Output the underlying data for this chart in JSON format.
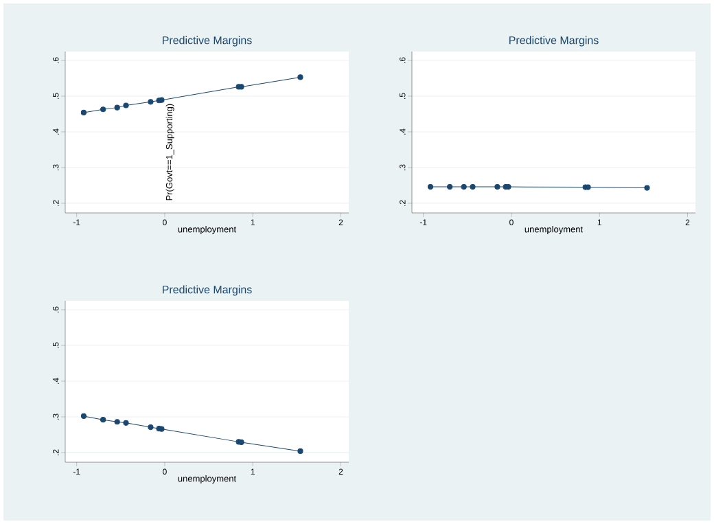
{
  "chart_data": [
    {
      "type": "line",
      "title": "Predictive Margins",
      "xlabel": "unemployment",
      "ylabel": "Pr(Govt==1_Supporting)",
      "color": "#1a476f",
      "marker": "circle",
      "grid": "y",
      "x": [
        -0.92,
        -0.7,
        -0.54,
        -0.44,
        -0.16,
        -0.065,
        -0.035,
        0.84,
        0.87,
        1.54
      ],
      "values": [
        0.454,
        0.463,
        0.468,
        0.474,
        0.484,
        0.488,
        0.489,
        0.526,
        0.526,
        0.553
      ],
      "xlim": [
        -1.13,
        2.09
      ],
      "ylim": [
        0.173,
        0.625
      ],
      "xticks": [
        -1,
        0,
        1,
        2
      ],
      "yticks": [
        {
          "value": 0.2,
          "label": ".2"
        },
        {
          "value": 0.3,
          "label": ".3"
        },
        {
          "value": 0.4,
          "label": ".4"
        },
        {
          "value": 0.5,
          "label": ".5"
        },
        {
          "value": 0.6,
          "label": ".6"
        }
      ]
    },
    {
      "type": "line",
      "title": "Predictive Margins",
      "xlabel": "unemployment",
      "color": "#1a476f",
      "marker": "circle",
      "grid": "y",
      "x": [
        -0.92,
        -0.7,
        -0.54,
        -0.44,
        -0.16,
        -0.065,
        -0.035,
        0.84,
        0.87,
        1.54
      ],
      "values": [
        0.246,
        0.246,
        0.246,
        0.246,
        0.246,
        0.246,
        0.246,
        0.245,
        0.245,
        0.243
      ],
      "xlim": [
        -1.13,
        2.09
      ],
      "ylim": [
        0.173,
        0.625
      ],
      "xticks": [
        -1,
        0,
        1,
        2
      ],
      "yticks": [
        {
          "value": 0.2,
          "label": ".2"
        },
        {
          "value": 0.3,
          "label": ".3"
        },
        {
          "value": 0.4,
          "label": ".4"
        },
        {
          "value": 0.5,
          "label": ".5"
        },
        {
          "value": 0.6,
          "label": ".6"
        }
      ]
    },
    {
      "type": "line",
      "title": "Predictive Margins",
      "xlabel": "unemployment",
      "color": "#1a476f",
      "marker": "circle",
      "grid": "y",
      "x": [
        -0.92,
        -0.7,
        -0.54,
        -0.44,
        -0.16,
        -0.065,
        -0.035,
        0.84,
        0.87,
        1.54
      ],
      "values": [
        0.302,
        0.292,
        0.286,
        0.283,
        0.271,
        0.267,
        0.266,
        0.23,
        0.229,
        0.204
      ],
      "xlim": [
        -1.13,
        2.09
      ],
      "ylim": [
        0.173,
        0.625
      ],
      "xticks": [
        -1,
        0,
        1,
        2
      ],
      "yticks": [
        {
          "value": 0.2,
          "label": ".2"
        },
        {
          "value": 0.3,
          "label": ".3"
        },
        {
          "value": 0.4,
          "label": ".4"
        },
        {
          "value": 0.5,
          "label": ".5"
        },
        {
          "value": 0.6,
          "label": ".6"
        }
      ]
    }
  ]
}
